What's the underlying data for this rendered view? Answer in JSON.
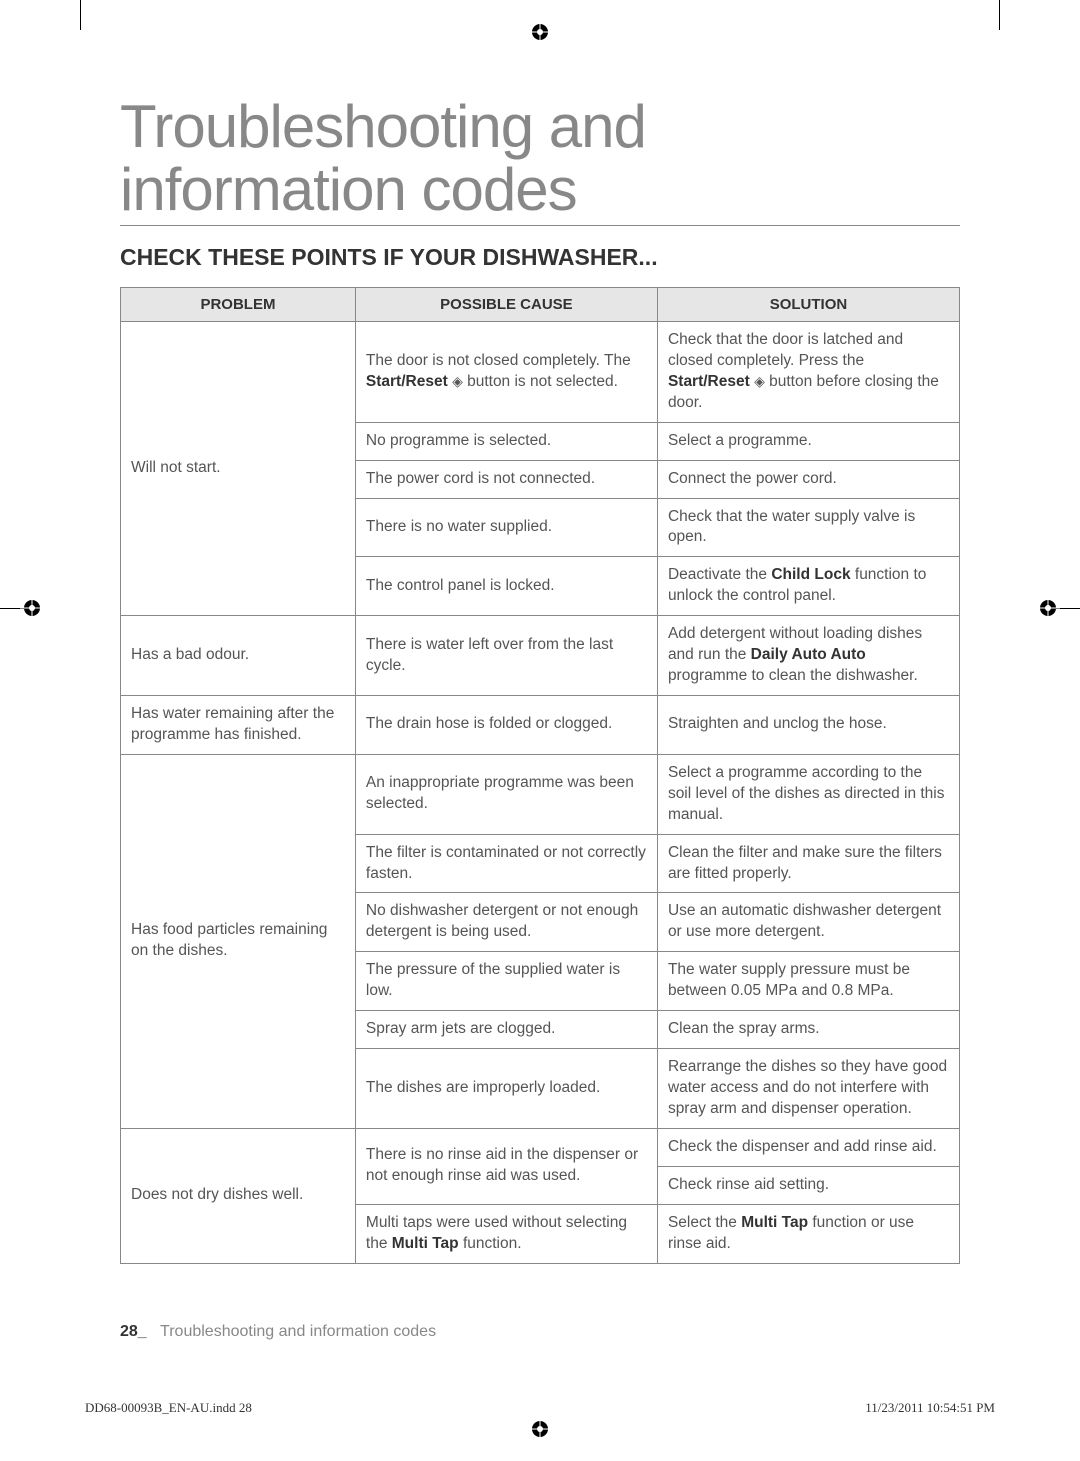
{
  "title_line1": "Troubleshooting and",
  "title_line2": "information codes",
  "subtitle": "CHECK THESE POINTS IF YOUR DISHWASHER...",
  "headers": {
    "problem": "PROBLEM",
    "cause": "POSSIBLE CAUSE",
    "solution": "SOLUTION"
  },
  "rows": [
    {
      "problem": "Will not start.",
      "rowspan": 5,
      "cause_html": "The door is not closed completely. The <span class=\"b\">Start/Reset</span> <span class=\"diamond\">◈</span> button is not selected.",
      "solution_html": "Check that the door is latched and closed completely. Press the <span class=\"b\">Start/Reset</span> <span class=\"diamond\">◈</span> button before closing the door."
    },
    {
      "cause_html": "No programme is selected.",
      "solution_html": "Select a programme."
    },
    {
      "cause_html": "The power cord is not connected.",
      "solution_html": "Connect the power cord."
    },
    {
      "cause_html": "There is no water supplied.",
      "solution_html": "Check that the water supply valve is open."
    },
    {
      "cause_html": "The control panel is locked.",
      "solution_html": "Deactivate the <span class=\"b\">Child Lock</span> function to unlock the control panel."
    },
    {
      "problem": "Has a bad odour.",
      "rowspan": 1,
      "cause_html": "There is water left over from the last cycle.",
      "solution_html": "Add detergent without loading dishes and run the <span class=\"b\">Daily Auto Auto</span> programme to clean the dishwasher."
    },
    {
      "problem": "Has water remaining after the programme has finished.",
      "rowspan": 1,
      "cause_html": "The drain hose is folded or clogged.",
      "solution_html": "Straighten and unclog the hose."
    },
    {
      "problem": "Has food particles remaining on the dishes.",
      "rowspan": 6,
      "cause_html": "An inappropriate programme was been selected.",
      "solution_html": "Select a programme according to the soil level of the dishes as directed in this manual."
    },
    {
      "cause_html": "The filter is contaminated or not correctly fasten.",
      "solution_html": "Clean the filter and make sure the filters are fitted properly."
    },
    {
      "cause_html": "No dishwasher detergent or not enough detergent is being used.",
      "solution_html": "Use an automatic dishwasher detergent or use more detergent."
    },
    {
      "cause_html": "The pressure of the supplied water is low.",
      "solution_html": "The water supply pressure must be between 0.05 MPa and 0.8 MPa."
    },
    {
      "cause_html": "Spray arm jets are clogged.",
      "solution_html": "Clean the spray arms."
    },
    {
      "cause_html": "The dishes are improperly loaded.",
      "solution_html": "Rearrange the dishes so they have good water access and do not interfere with spray arm and dispenser operation."
    },
    {
      "problem": "Does not dry dishes well.",
      "rowspan": 3,
      "cause_html_rowspan": 2,
      "cause_html": "There is no rinse aid in the dispenser or not enough rinse aid was used.",
      "solution_html": "Check the dispenser and add rinse aid."
    },
    {
      "solution_html": "Check rinse aid setting."
    },
    {
      "cause_html": "Multi taps were used without selecting the <span class=\"b\">Multi Tap</span> function.",
      "solution_html": "Select the <span class=\"b\">Multi Tap</span> function or use rinse aid."
    }
  ],
  "footer": {
    "page_number": "28_",
    "section": "Troubleshooting and information codes"
  },
  "print_left": "DD68-00093B_EN-AU.indd   28",
  "print_right": "11/23/2011   10:54:51 PM",
  "colors": {
    "text": "#555555",
    "border": "#888888",
    "header_bg": "#e6e6e6"
  }
}
